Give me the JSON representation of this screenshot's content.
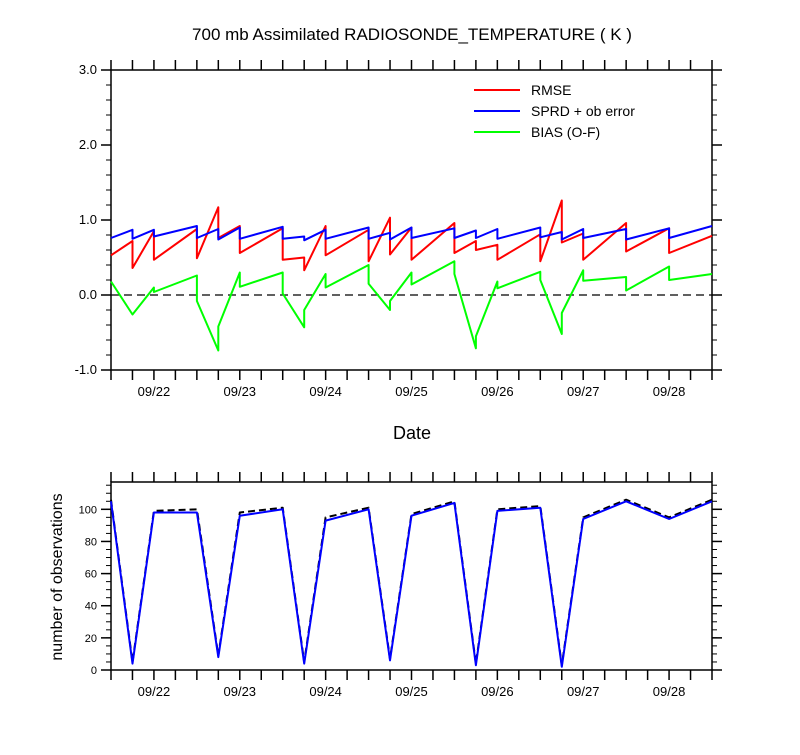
{
  "chart_data": [
    {
      "type": "line",
      "title": "700 mb Assimilated RADIOSONDE_TEMPERATURE ( K )",
      "xlabel": "Date",
      "ylabel": "",
      "ylim": [
        -1.0,
        3.0
      ],
      "yticks": [
        -1.0,
        0.0,
        1.0,
        2.0,
        3.0
      ],
      "ytick_labels": [
        "-1.0",
        "0.0",
        "1.0",
        "2.0",
        "3.0"
      ],
      "xlim": [
        0.0,
        7.0
      ],
      "xtick_positions": [
        0.5,
        1.5,
        2.5,
        3.5,
        4.5,
        5.5,
        6.5
      ],
      "xtick_labels": [
        "09/22",
        "09/23",
        "09/24",
        "09/25",
        "09/26",
        "09/27",
        "09/28"
      ],
      "legend_position": "top-right",
      "reference_line": 0.0,
      "series": [
        {
          "name": "RMSE",
          "color": "#ff0000",
          "x": [
            0.0,
            0.25,
            0.25,
            0.5,
            0.5,
            1.0,
            1.0,
            1.25,
            1.25,
            1.5,
            1.5,
            2.0,
            2.0,
            2.25,
            2.25,
            2.5,
            2.5,
            3.0,
            3.0,
            3.25,
            3.25,
            3.5,
            3.5,
            4.0,
            4.0,
            4.25,
            4.25,
            4.5,
            4.5,
            5.0,
            5.0,
            5.25,
            5.25,
            5.5,
            5.5,
            6.0,
            6.0,
            6.5,
            6.5,
            7.0
          ],
          "y": [
            0.53,
            0.72,
            0.36,
            0.85,
            0.47,
            0.88,
            0.49,
            1.17,
            0.76,
            0.92,
            0.56,
            0.89,
            0.47,
            0.5,
            0.33,
            0.92,
            0.53,
            0.87,
            0.45,
            1.03,
            0.54,
            0.9,
            0.47,
            0.96,
            0.56,
            0.72,
            0.6,
            0.67,
            0.47,
            0.81,
            0.45,
            1.26,
            0.7,
            0.82,
            0.47,
            0.96,
            0.58,
            0.89,
            0.56,
            0.79
          ]
        },
        {
          "name": "SPRD + ob error",
          "color": "#0000ff",
          "x": [
            0.0,
            0.25,
            0.25,
            0.5,
            0.5,
            1.0,
            1.0,
            1.25,
            1.25,
            1.5,
            1.5,
            2.0,
            2.0,
            2.25,
            2.25,
            2.5,
            2.5,
            3.0,
            3.0,
            3.25,
            3.25,
            3.5,
            3.5,
            4.0,
            4.0,
            4.25,
            4.25,
            4.5,
            4.5,
            5.0,
            5.0,
            5.25,
            5.25,
            5.5,
            5.5,
            6.0,
            6.0,
            6.5,
            6.5,
            7.0
          ],
          "y": [
            0.76,
            0.87,
            0.75,
            0.87,
            0.78,
            0.92,
            0.76,
            0.88,
            0.74,
            0.9,
            0.75,
            0.91,
            0.75,
            0.78,
            0.73,
            0.87,
            0.75,
            0.9,
            0.75,
            0.83,
            0.74,
            0.9,
            0.76,
            0.89,
            0.76,
            0.86,
            0.76,
            0.88,
            0.75,
            0.9,
            0.77,
            0.84,
            0.74,
            0.88,
            0.76,
            0.88,
            0.74,
            0.89,
            0.76,
            0.92
          ]
        },
        {
          "name": "BIAS (O-F)",
          "color": "#00ff00",
          "x": [
            0.0,
            0.25,
            0.5,
            0.5,
            1.0,
            1.0,
            1.25,
            1.25,
            1.5,
            1.5,
            2.0,
            2.0,
            2.25,
            2.25,
            2.5,
            2.5,
            3.0,
            3.0,
            3.25,
            3.25,
            3.5,
            3.5,
            4.0,
            4.0,
            4.25,
            4.25,
            4.5,
            4.5,
            5.0,
            5.0,
            5.25,
            5.25,
            5.5,
            5.5,
            6.0,
            6.0,
            6.5,
            6.5,
            7.0
          ],
          "y": [
            0.18,
            -0.26,
            0.1,
            0.04,
            0.26,
            -0.08,
            -0.74,
            -0.42,
            0.3,
            0.11,
            0.3,
            0.02,
            -0.43,
            -0.2,
            0.28,
            0.1,
            0.4,
            0.15,
            -0.2,
            -0.08,
            0.3,
            0.14,
            0.45,
            0.28,
            -0.71,
            -0.55,
            0.18,
            0.09,
            0.31,
            0.2,
            -0.52,
            -0.24,
            0.33,
            0.19,
            0.24,
            0.06,
            0.38,
            0.2,
            0.28
          ]
        }
      ]
    },
    {
      "type": "line",
      "title": "",
      "xlabel": "",
      "ylabel": "number of observations",
      "ylim": [
        0,
        117
      ],
      "yticks": [
        0,
        20,
        40,
        60,
        80,
        100
      ],
      "ytick_labels": [
        "0",
        "20",
        "40",
        "60",
        "80",
        "100"
      ],
      "xlim": [
        0.0,
        7.0
      ],
      "xtick_positions": [
        0.5,
        1.5,
        2.5,
        3.5,
        4.5,
        5.5,
        6.5
      ],
      "xtick_labels": [
        "09/22",
        "09/23",
        "09/24",
        "09/25",
        "09/26",
        "09/27",
        "09/28"
      ],
      "series": [
        {
          "color": "#000000",
          "style": "dashed",
          "x": [
            0.0,
            0.25,
            0.5,
            1.0,
            1.25,
            1.5,
            2.0,
            2.25,
            2.5,
            3.0,
            3.25,
            3.5,
            4.0,
            4.25,
            4.5,
            5.0,
            5.25,
            5.5,
            6.0,
            6.5,
            7.0
          ],
          "y": [
            106,
            5,
            99,
            100,
            9,
            98,
            101,
            5,
            95,
            101,
            7,
            97,
            105,
            4,
            100,
            102,
            3,
            95,
            106,
            95,
            106
          ]
        },
        {
          "color": "#0000ff",
          "style": "solid",
          "x": [
            0.0,
            0.25,
            0.5,
            1.0,
            1.25,
            1.5,
            2.0,
            2.25,
            2.5,
            3.0,
            3.25,
            3.5,
            4.0,
            4.25,
            4.5,
            5.0,
            5.25,
            5.5,
            6.0,
            6.5,
            7.0
          ],
          "y": [
            105,
            4,
            98,
            98,
            8,
            96,
            100,
            4,
            93,
            100,
            6,
            96,
            104,
            3,
            99,
            101,
            2,
            94,
            105,
            94,
            105
          ]
        }
      ]
    }
  ]
}
